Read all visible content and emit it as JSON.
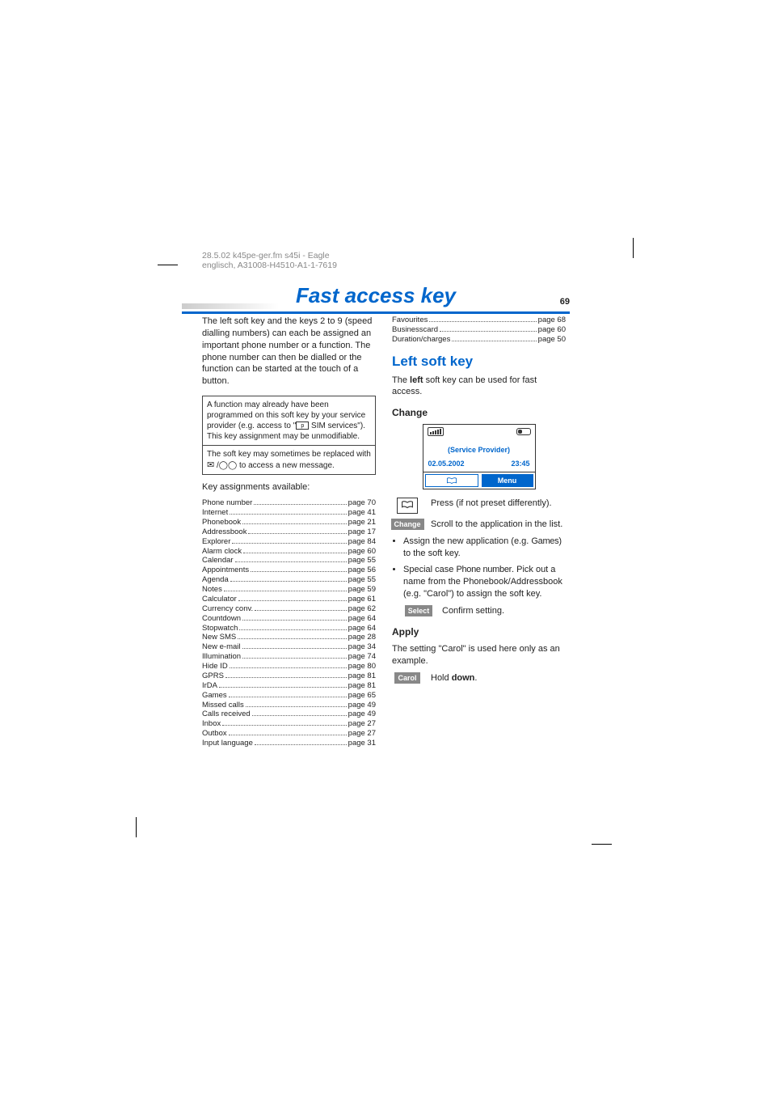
{
  "header": {
    "meta": "28.5.02    k45pe-ger.fm     s45i - Eagle  englisch, A31008-H4510-A1-1-7619",
    "title": "Fast access key",
    "page_number": "69"
  },
  "left": {
    "intro": "The left soft key and the keys 2 to 9 (speed dialling numbers) can each be assigned an important phone number or a function. The phone number can then be dialled or the function can be started at the touch of a button.",
    "note_top_a": "A function may already have been programmed on this soft key by your service provider (e.g. access to \"",
    "note_top_b": " SIM services\"). This key assignment may be unmodifiable.",
    "note_bottom_a": "The soft key may sometimes be replaced with ",
    "note_bottom_b": " to access a new message.",
    "assign_heading": "Key assignments available:",
    "assignments": [
      {
        "l": "Phone number",
        "p": "page 70"
      },
      {
        "l": "Internet",
        "p": "page 41"
      },
      {
        "l": "Phonebook",
        "p": "page 21"
      },
      {
        "l": "Addressbook",
        "p": "page 17"
      },
      {
        "l": "Explorer",
        "p": "page 84"
      },
      {
        "l": "Alarm clock",
        "p": "page 60"
      },
      {
        "l": "Calendar",
        "p": "page 55"
      },
      {
        "l": "Appointments",
        "p": "page 56"
      },
      {
        "l": "Agenda",
        "p": "page 55"
      },
      {
        "l": "Notes",
        "p": "page 59"
      },
      {
        "l": "Calculator",
        "p": "page 61"
      },
      {
        "l": "Currency conv.",
        "p": "page 62"
      },
      {
        "l": "Countdown",
        "p": "page 64"
      },
      {
        "l": "Stopwatch",
        "p": "page 64"
      },
      {
        "l": "New SMS",
        "p": "page 28"
      },
      {
        "l": "New e-mail",
        "p": "page 34"
      },
      {
        "l": "Illumination",
        "p": "page 74"
      },
      {
        "l": "Hide ID",
        "p": "page 80"
      },
      {
        "l": "GPRS",
        "p": "page 81"
      },
      {
        "l": "IrDA",
        "p": "page 81"
      },
      {
        "l": "Games",
        "p": "page 65"
      },
      {
        "l": "Missed calls",
        "p": "page 49"
      },
      {
        "l": "Calls received",
        "p": "page 49"
      },
      {
        "l": "Inbox",
        "p": "page 27"
      },
      {
        "l": "Outbox",
        "p": "page 27"
      },
      {
        "l": "Input language",
        "p": "page 31"
      }
    ]
  },
  "right_top_assignments": [
    {
      "l": "Favourites",
      "p": "page 68"
    },
    {
      "l": "Businesscard",
      "p": "page 60"
    },
    {
      "l": "Duration/charges",
      "p": "page 50"
    }
  ],
  "right": {
    "h2": "Left soft key",
    "intro_a": "The ",
    "intro_bold": "left",
    "intro_b": " soft key can be used for fast access.",
    "change_h": "Change",
    "screen": {
      "provider": "(Service Provider)",
      "date": "02.05.2002",
      "time": "23:45",
      "menu": "Menu"
    },
    "press_text": "Press (if not preset differently).",
    "change_pill": "Change",
    "change_text": "Scroll to the application in the list.",
    "bullet1_a": "Assign the new application (e.g. ",
    "bullet1_cond": "Games",
    "bullet1_b": ") to the soft key.",
    "bullet2_a": "Special case ",
    "bullet2_cond": "Phone number",
    "bullet2_b": ". Pick out a name from the Phonebook/Addressbook (e.g. \"Carol\") to assign the soft key.",
    "select_pill": "Select",
    "select_text": "Confirm setting.",
    "apply_h": "Apply",
    "apply_intro": "The setting \"Carol\" is used here only as an example.",
    "carol_pill": "Carol",
    "carol_a": "Hold ",
    "carol_bold": "down",
    "carol_b": "."
  }
}
